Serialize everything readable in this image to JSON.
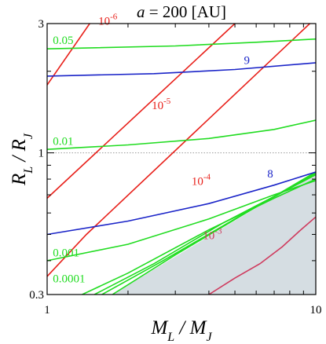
{
  "chart_data": {
    "type": "line",
    "title": {
      "main": "= 200 [AU]",
      "var": "a"
    },
    "xlabel": "M_L / M_J",
    "ylabel": "R_L / R_J",
    "xlim": [
      1,
      10
    ],
    "ylim": [
      0.3,
      3
    ],
    "xscale": "log",
    "yscale": "log",
    "xticks": [
      "1",
      "10"
    ],
    "yticks": [
      "0.3",
      "1",
      "3"
    ],
    "reference_line": {
      "y": 1,
      "style": "dotted"
    },
    "shaded_region": {
      "vertices": [
        [
          1.75,
          0.3
        ],
        [
          10,
          0.85
        ],
        [
          10,
          0.3
        ]
      ],
      "color": "#d5dde2"
    },
    "colors": {
      "red": "#e8201a",
      "green": "#21dc21",
      "blue": "#1a24c8",
      "darkred": "#cf3b5e",
      "ref": "#9a9a9a"
    },
    "series": [
      {
        "name": "10-6",
        "base": "10",
        "exp": "-6",
        "color": "red",
        "points": [
          [
            1,
            1.78
          ],
          [
            1.44,
            3.0
          ]
        ],
        "label_at": [
          1.55,
          2.97
        ]
      },
      {
        "name": "10-5",
        "base": "10",
        "exp": "-5",
        "color": "red",
        "points": [
          [
            1,
            0.68
          ],
          [
            5.0,
            3.0
          ]
        ],
        "label_at": [
          2.45,
          1.45
        ]
      },
      {
        "name": "10-4",
        "base": "10",
        "exp": "-4",
        "color": "red",
        "points": [
          [
            1,
            0.35
          ],
          [
            1.4,
            0.5
          ],
          [
            9.5,
            3.0
          ]
        ],
        "label_at": [
          3.45,
          0.76
        ]
      },
      {
        "name": "10-3",
        "base": "10",
        "exp": "-3",
        "color": "darkred",
        "points": [
          [
            4.0,
            0.3
          ],
          [
            5.0,
            0.345
          ],
          [
            6.2,
            0.39
          ],
          [
            7.5,
            0.45
          ],
          [
            8.8,
            0.52
          ],
          [
            10,
            0.58
          ]
        ],
        "label_at": [
          3.8,
          0.48
        ]
      },
      {
        "name": "0.05",
        "color": "green",
        "points": [
          [
            1,
            2.42
          ],
          [
            3,
            2.48
          ],
          [
            6,
            2.56
          ],
          [
            10,
            2.63
          ]
        ],
        "label_at": [
          1.05,
          2.52
        ]
      },
      {
        "name": "0.01",
        "color": "green",
        "points": [
          [
            1,
            1.03
          ],
          [
            2,
            1.07
          ],
          [
            4,
            1.13
          ],
          [
            7,
            1.22
          ],
          [
            10,
            1.32
          ]
        ],
        "label_at": [
          1.05,
          1.07
        ]
      },
      {
        "name": "0.001",
        "color": "green",
        "points": [
          [
            1,
            0.4
          ],
          [
            2,
            0.46
          ],
          [
            4,
            0.57
          ],
          [
            7,
            0.7
          ],
          [
            10,
            0.79
          ]
        ],
        "label_at": [
          1.05,
          0.415
        ]
      },
      {
        "name": "0.0001",
        "color": "green",
        "points": [
          [
            1.35,
            0.3
          ],
          [
            2,
            0.36
          ],
          [
            4,
            0.52
          ],
          [
            7,
            0.68
          ],
          [
            10,
            0.8
          ]
        ],
        "label_at": [
          1.05,
          0.333
        ]
      },
      {
        "name": "",
        "color": "green",
        "points": [
          [
            1.5,
            0.3
          ],
          [
            2.5,
            0.39
          ],
          [
            4.5,
            0.55
          ],
          [
            10,
            0.83
          ]
        ]
      },
      {
        "name": "",
        "color": "green",
        "points": [
          [
            1.6,
            0.3
          ],
          [
            2.7,
            0.4
          ],
          [
            5,
            0.57
          ],
          [
            10,
            0.84
          ]
        ]
      },
      {
        "name": "",
        "color": "green",
        "points": [
          [
            1.75,
            0.3
          ],
          [
            3,
            0.42
          ],
          [
            5.5,
            0.6
          ],
          [
            10,
            0.85
          ]
        ]
      },
      {
        "name": "9",
        "color": "blue",
        "points": [
          [
            1,
            1.92
          ],
          [
            2.5,
            1.96
          ],
          [
            5,
            2.03
          ],
          [
            10,
            2.15
          ]
        ],
        "label_at": [
          5.4,
          2.13
        ]
      },
      {
        "name": "8",
        "color": "blue",
        "points": [
          [
            1,
            0.5
          ],
          [
            2,
            0.56
          ],
          [
            4,
            0.65
          ],
          [
            7,
            0.76
          ],
          [
            10,
            0.85
          ]
        ],
        "label_at": [
          6.6,
          0.81
        ]
      }
    ]
  }
}
